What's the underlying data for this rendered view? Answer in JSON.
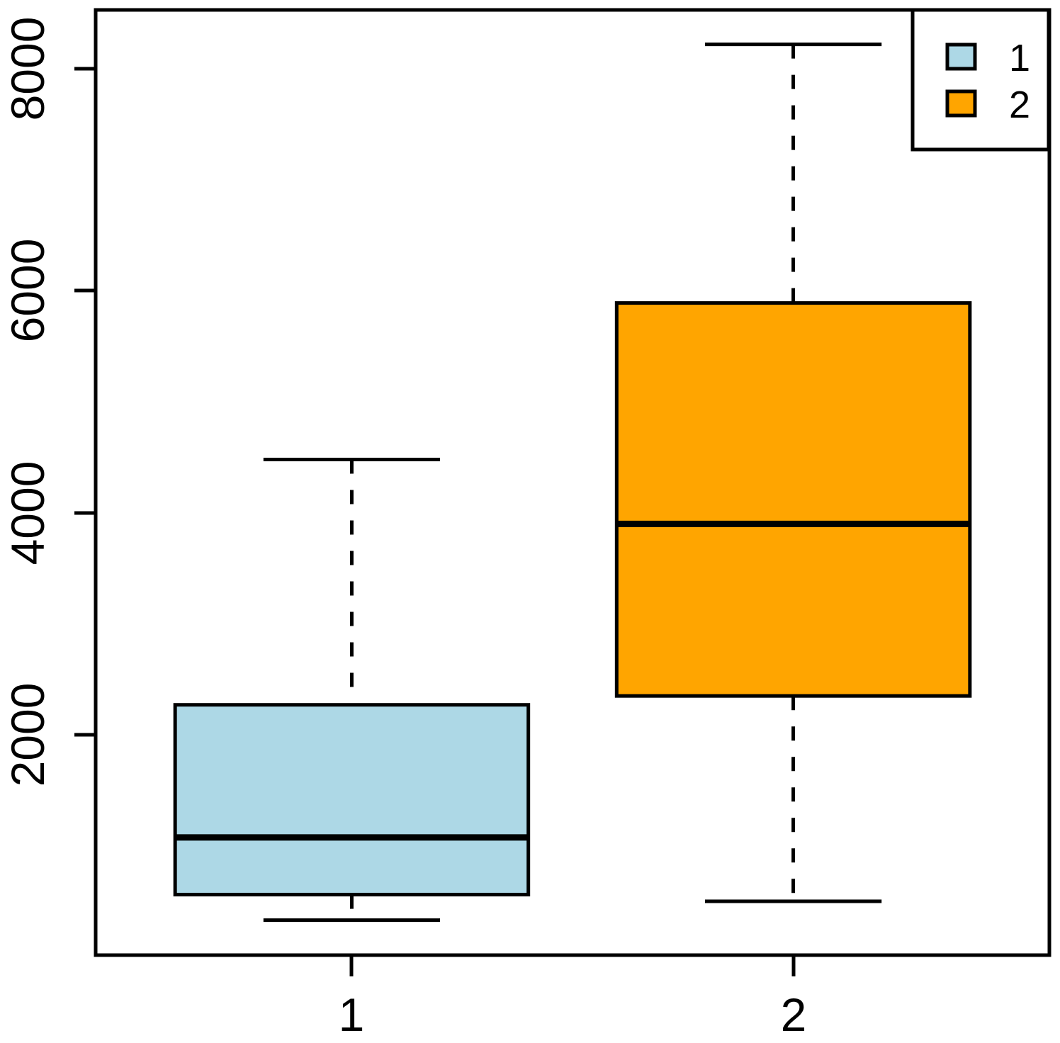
{
  "chart_data": {
    "type": "boxplot",
    "title": "",
    "xlabel": "",
    "ylabel": "",
    "categories": [
      "1",
      "2"
    ],
    "series": [
      {
        "name": "1",
        "color": "#ADD8E6",
        "whisker_low": 330,
        "q1": 560,
        "median": 1075,
        "q3": 2270,
        "whisker_high": 4480
      },
      {
        "name": "2",
        "color": "#FFA500",
        "whisker_low": 500,
        "q1": 2350,
        "median": 3900,
        "q3": 5890,
        "whisker_high": 8220
      }
    ],
    "ylim": [
      15,
      8530
    ],
    "yticks": [
      2000,
      4000,
      6000,
      8000
    ],
    "ytick_labels": [
      "2000",
      "4000",
      "6000",
      "8000"
    ],
    "xtick_labels": [
      "1",
      "2"
    ],
    "grid": false,
    "axis_color": "#000000",
    "background_color": "#FFFFFF",
    "legend": {
      "position": "top-right",
      "entries": [
        {
          "label": "1",
          "color": "#ADD8E6"
        },
        {
          "label": "2",
          "color": "#FFA500"
        }
      ]
    }
  }
}
